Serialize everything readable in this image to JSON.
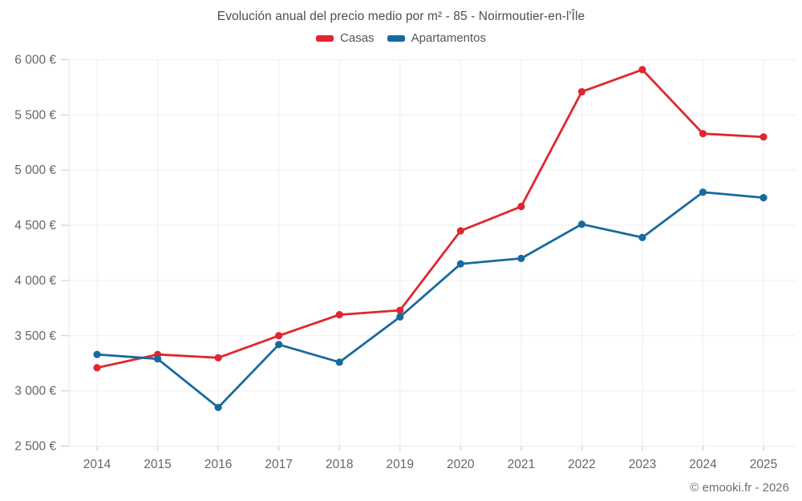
{
  "title": "Evolución anual del precio medio por m² - 85 - Noirmoutier-en-l'Île",
  "footer": "© emooki.fr - 2026",
  "chart_data": {
    "type": "line",
    "title": "Evolución anual del precio medio por m² - 85 - Noirmoutier-en-l'Île",
    "categories": [
      2014,
      2015,
      2016,
      2017,
      2018,
      2019,
      2020,
      2021,
      2022,
      2023,
      2024,
      2025
    ],
    "series": [
      {
        "name": "Casas",
        "color": "#e0262f",
        "values": [
          3210,
          3330,
          3300,
          3500,
          3690,
          3730,
          4450,
          4670,
          5710,
          5910,
          5330,
          5300
        ]
      },
      {
        "name": "Apartamentos",
        "color": "#176a9f",
        "values": [
          3330,
          3290,
          2850,
          3420,
          3260,
          3670,
          4150,
          4200,
          4510,
          4390,
          4800,
          4750
        ]
      }
    ],
    "ylim": [
      2500,
      6000
    ],
    "ytick_step": 500,
    "ytick_labels": [
      "2 500 €",
      "3 000 €",
      "3 500 €",
      "4 000 €",
      "4 500 €",
      "5 000 €",
      "5 500 €",
      "6 000 €"
    ],
    "xlabel": "",
    "ylabel": "",
    "grid": true,
    "legend_position": "top",
    "colors": {
      "grid_line": "#ededed",
      "axis_line": "#e3e3e3",
      "tick_mark": "#c9c9c9",
      "tick_text": "#666666",
      "title_text": "#4d4d4d"
    }
  }
}
